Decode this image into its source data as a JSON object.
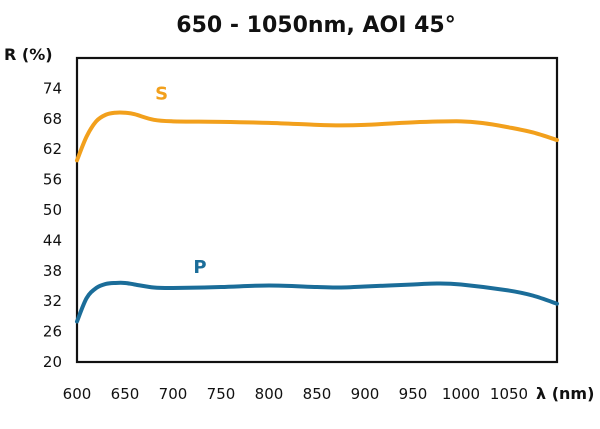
{
  "chart_data": {
    "type": "line",
    "title": "650 - 1050nm, AOI 45°",
    "xlabel": "λ (nm)",
    "ylabel": "R (%)",
    "xlim": [
      600,
      1100
    ],
    "ylim": [
      20,
      80
    ],
    "x_ticks": [
      600,
      650,
      700,
      750,
      800,
      850,
      900,
      950,
      1000,
      1050
    ],
    "y_ticks": [
      20,
      26,
      32,
      38,
      44,
      50,
      56,
      62,
      68,
      74
    ],
    "grid": false,
    "legend": "inline labels",
    "series": [
      {
        "name": "S",
        "color": "#F2A01C",
        "label_at": [
          610,
          71.8
        ],
        "x": [
          600,
          610,
          620,
          630,
          640,
          650,
          660,
          680,
          700,
          750,
          800,
          850,
          875,
          900,
          950,
          1000,
          1025,
          1050,
          1075,
          1100
        ],
        "y": [
          59.8,
          64.5,
          67.5,
          68.8,
          69.2,
          69.2,
          68.9,
          67.8,
          67.5,
          67.4,
          67.2,
          66.8,
          66.7,
          66.8,
          67.3,
          67.5,
          67.1,
          66.3,
          65.3,
          63.8
        ]
      },
      {
        "name": "P",
        "color": "#1B6D99",
        "label_at": [
          650,
          37.6
        ],
        "x": [
          600,
          610,
          620,
          630,
          640,
          650,
          660,
          680,
          700,
          750,
          800,
          850,
          875,
          900,
          950,
          975,
          1000,
          1050,
          1075,
          1100
        ],
        "y": [
          28.0,
          32.6,
          34.6,
          35.4,
          35.6,
          35.6,
          35.3,
          34.7,
          34.6,
          34.8,
          35.1,
          34.8,
          34.7,
          34.9,
          35.3,
          35.5,
          35.3,
          34.1,
          33.1,
          31.5
        ]
      }
    ]
  }
}
